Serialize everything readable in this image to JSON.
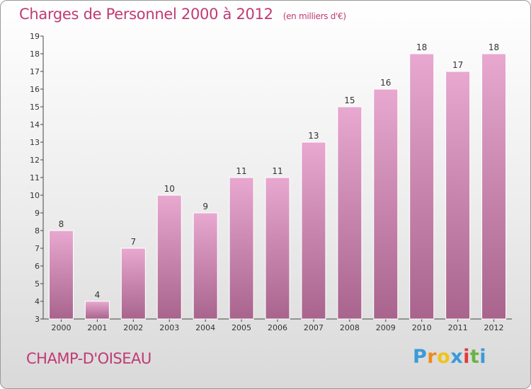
{
  "header": {
    "title": "Charges de Personnel 2000 à 2012",
    "unit": "(en milliers d'€)"
  },
  "footer": {
    "place": "CHAMP-D'OISEAU",
    "logo": {
      "letters": [
        "P",
        "r",
        "o",
        "x",
        "i",
        "t",
        "i"
      ],
      "colors": [
        "#3b9ad9",
        "#f08a1c",
        "#f0c419",
        "#3b9ad9",
        "#e23b3b",
        "#6ab344",
        "#3b9ad9"
      ]
    }
  },
  "colors": {
    "accent": "#c03a74",
    "bar_top": "#e8a8d0",
    "bar_bottom": "#a8648c"
  },
  "chart_data": {
    "type": "bar",
    "title": "Charges de Personnel 2000 à 2012",
    "subtitle": "(en milliers d'€)",
    "categories": [
      "2000",
      "2001",
      "2002",
      "2003",
      "2004",
      "2005",
      "2006",
      "2007",
      "2008",
      "2009",
      "2010",
      "2011",
      "2012"
    ],
    "values": [
      8,
      4,
      7,
      10,
      9,
      11,
      11,
      13,
      15,
      16,
      18,
      17,
      18
    ],
    "ylim": [
      3,
      19
    ],
    "yticks": [
      "3",
      "4",
      "5",
      "6",
      "7",
      "8",
      "9",
      "10",
      "11",
      "12",
      "13",
      "14",
      "15",
      "16",
      "17",
      "18",
      "19"
    ],
    "grid": false,
    "data_labels": true
  }
}
